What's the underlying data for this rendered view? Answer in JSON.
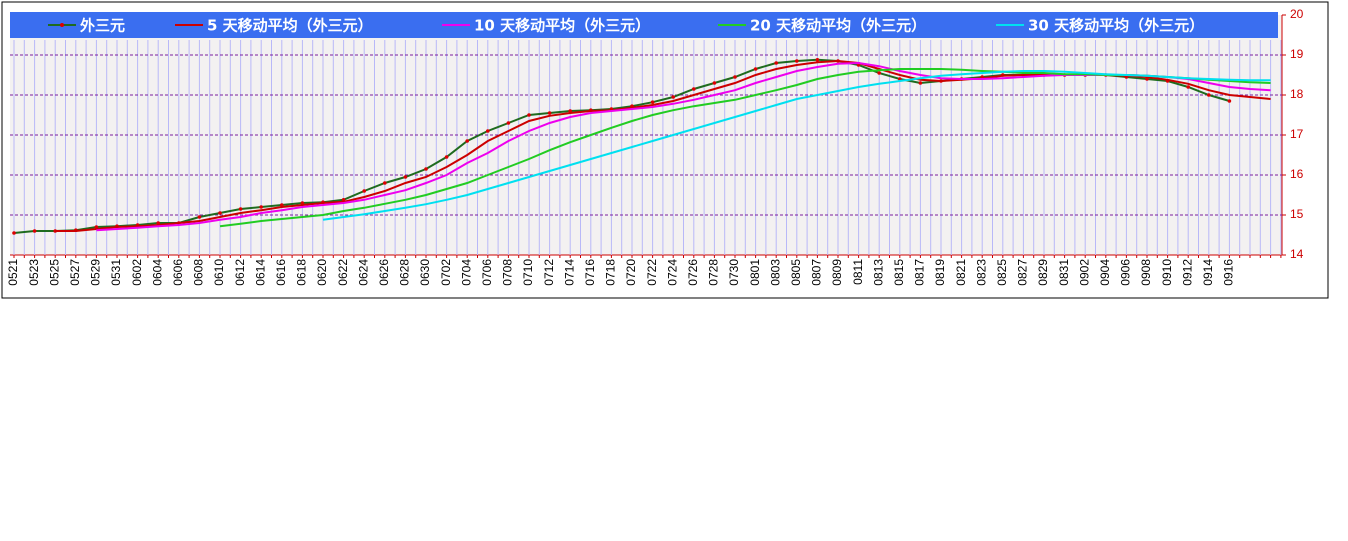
{
  "chart_data": {
    "type": "line",
    "categories": [
      "0521",
      "0523",
      "0525",
      "0527",
      "0529",
      "0531",
      "0602",
      "0604",
      "0606",
      "0608",
      "0610",
      "0612",
      "0614",
      "0616",
      "0618",
      "0620",
      "0622",
      "0624",
      "0626",
      "0628",
      "0630",
      "0702",
      "0704",
      "0706",
      "0708",
      "0710",
      "0712",
      "0714",
      "0716",
      "0718",
      "0720",
      "0722",
      "0724",
      "0726",
      "0728",
      "0730",
      "0801",
      "0803",
      "0805",
      "0807",
      "0809",
      "0811",
      "0813",
      "0815",
      "0817",
      "0819",
      "0821",
      "0823",
      "0825",
      "0827",
      "0829",
      "0831",
      "0902",
      "0904",
      "0906",
      "0908",
      "0910",
      "0912",
      "0914",
      "0916",
      null,
      null
    ],
    "series": [
      {
        "name": "外三元",
        "color": "#1f6b1f",
        "marker_color": "#dd0000",
        "values": [
          14.55,
          14.6,
          14.6,
          14.62,
          14.7,
          14.72,
          14.75,
          14.8,
          14.8,
          14.95,
          15.05,
          15.15,
          15.2,
          15.25,
          15.3,
          15.32,
          15.38,
          15.6,
          15.8,
          15.95,
          16.15,
          16.45,
          16.85,
          17.1,
          17.3,
          17.5,
          17.55,
          17.6,
          17.62,
          17.65,
          17.72,
          17.82,
          17.95,
          18.15,
          18.3,
          18.45,
          18.65,
          18.8,
          18.85,
          18.88,
          18.85,
          18.75,
          18.55,
          18.4,
          18.3,
          18.35,
          18.4,
          18.45,
          18.5,
          18.5,
          18.5,
          18.5,
          18.5,
          18.5,
          18.45,
          18.4,
          18.35,
          18.2,
          18.0,
          17.85,
          null,
          null
        ]
      },
      {
        "name": "5 天移动平均（外三元）",
        "color": "#cc0000",
        "values": [
          null,
          null,
          14.6,
          14.6,
          14.65,
          14.7,
          14.72,
          14.75,
          14.8,
          14.85,
          14.95,
          15.05,
          15.12,
          15.2,
          15.25,
          15.3,
          15.33,
          15.45,
          15.6,
          15.8,
          15.95,
          16.2,
          16.5,
          16.85,
          17.1,
          17.35,
          17.48,
          17.55,
          17.6,
          17.62,
          17.68,
          17.75,
          17.85,
          18.0,
          18.15,
          18.3,
          18.5,
          18.65,
          18.75,
          18.82,
          18.85,
          18.8,
          18.65,
          18.5,
          18.38,
          18.35,
          18.38,
          18.42,
          18.48,
          18.5,
          18.5,
          18.5,
          18.5,
          18.5,
          18.48,
          18.45,
          18.38,
          18.28,
          18.12,
          18.0,
          17.95,
          17.9
        ]
      },
      {
        "name": "10 天移动平均（外三元）",
        "color": "#ee00ee",
        "values": [
          null,
          null,
          null,
          null,
          14.62,
          14.65,
          14.68,
          14.72,
          14.75,
          14.8,
          14.88,
          14.95,
          15.05,
          15.12,
          15.2,
          15.25,
          15.3,
          15.38,
          15.5,
          15.62,
          15.8,
          16.0,
          16.3,
          16.55,
          16.85,
          17.1,
          17.3,
          17.45,
          17.55,
          17.6,
          17.65,
          17.7,
          17.78,
          17.88,
          18.0,
          18.12,
          18.3,
          18.45,
          18.6,
          18.7,
          18.78,
          18.8,
          18.72,
          18.6,
          18.5,
          18.42,
          18.4,
          18.4,
          18.42,
          18.45,
          18.48,
          18.5,
          18.5,
          18.5,
          18.5,
          18.48,
          18.45,
          18.4,
          18.3,
          18.2,
          18.15,
          18.12
        ]
      },
      {
        "name": "20 天移动平均（外三元）",
        "color": "#22cc22",
        "values": [
          null,
          null,
          null,
          null,
          null,
          null,
          null,
          null,
          null,
          null,
          14.72,
          14.78,
          14.85,
          14.9,
          14.95,
          15.0,
          15.1,
          15.18,
          15.28,
          15.38,
          15.5,
          15.65,
          15.8,
          16.0,
          16.2,
          16.4,
          16.62,
          16.82,
          17.0,
          17.18,
          17.35,
          17.5,
          17.62,
          17.72,
          17.8,
          17.88,
          18.0,
          18.12,
          18.25,
          18.4,
          18.5,
          18.58,
          18.62,
          18.65,
          18.65,
          18.65,
          18.63,
          18.6,
          18.58,
          18.55,
          18.55,
          18.52,
          18.52,
          18.5,
          18.5,
          18.48,
          18.45,
          18.42,
          18.38,
          18.35,
          18.32,
          18.3
        ]
      },
      {
        "name": "30 天移动平均（外三元）",
        "color": "#00e0f0",
        "values": [
          null,
          null,
          null,
          null,
          null,
          null,
          null,
          null,
          null,
          null,
          null,
          null,
          null,
          null,
          null,
          14.88,
          14.95,
          15.02,
          15.1,
          15.18,
          15.27,
          15.38,
          15.5,
          15.65,
          15.8,
          15.95,
          16.1,
          16.25,
          16.4,
          16.55,
          16.7,
          16.85,
          17.0,
          17.15,
          17.3,
          17.45,
          17.6,
          17.75,
          17.9,
          18.0,
          18.1,
          18.2,
          18.28,
          18.35,
          18.42,
          18.48,
          18.52,
          18.55,
          18.58,
          18.6,
          18.6,
          18.58,
          18.55,
          18.52,
          18.5,
          18.48,
          18.45,
          18.42,
          18.4,
          18.38,
          18.37,
          18.37
        ]
      }
    ],
    "ylim": [
      14,
      20
    ],
    "yticks": [
      14,
      15,
      16,
      17,
      18,
      19,
      20
    ],
    "grid": true
  }
}
